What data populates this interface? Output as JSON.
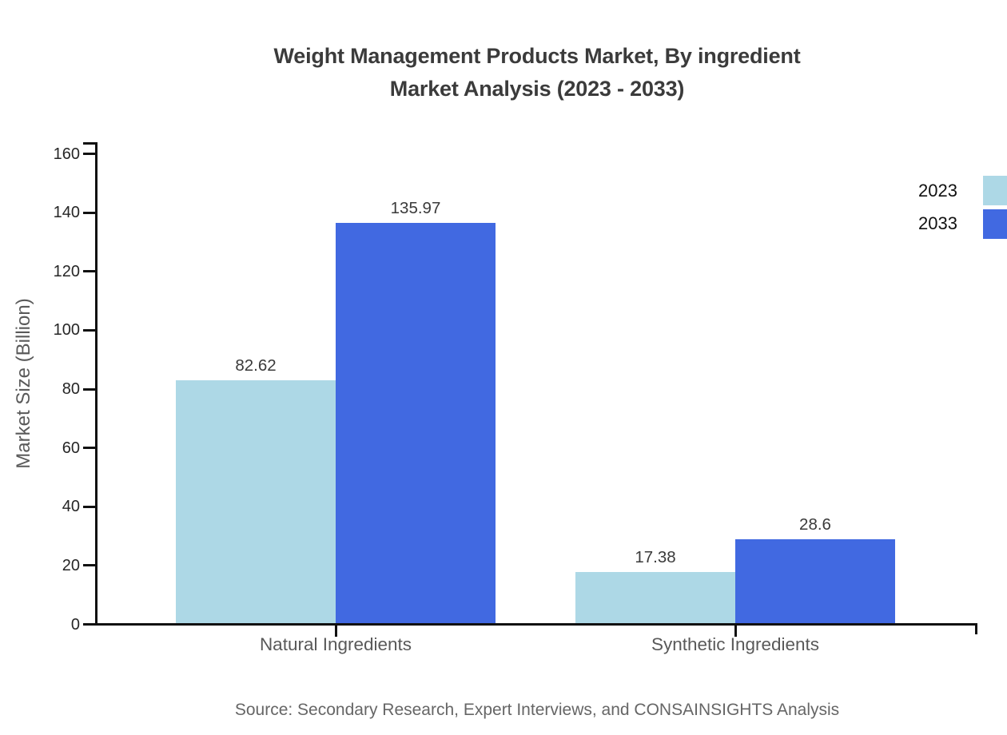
{
  "chart_data": {
    "type": "bar",
    "title_line1": "Weight Management Products Market, By ingredient",
    "title_line2": "Market Analysis (2023 - 2033)",
    "title": "Weight Management Products Market, By ingredient Market Analysis (2023 - 2033)",
    "ylabel": "Market Size (Billion)",
    "xlabel": "",
    "categories": [
      "Natural Ingredients",
      "Synthetic Ingredients"
    ],
    "series": [
      {
        "name": "2023",
        "color": "#ADD8E6",
        "values": [
          82.62,
          17.38
        ],
        "labels": [
          "82.62",
          "17.38"
        ]
      },
      {
        "name": "2033",
        "color": "#4169E1",
        "values": [
          135.97,
          28.6
        ],
        "labels": [
          "135.97",
          "28.6"
        ]
      }
    ],
    "ylim": [
      0,
      160
    ],
    "yticks": [
      0,
      20,
      40,
      60,
      80,
      100,
      120,
      140,
      160
    ],
    "grid": false,
    "legend_position": "top-right",
    "source": "Source: Secondary Research, Expert Interviews, and CONSAINSIGHTS Analysis"
  },
  "colors": {
    "axis": "#111111",
    "title_text": "#3b3b3b",
    "tick_text": "#262626",
    "category_text": "#595959",
    "value_text": "#3a3a3a",
    "source_text": "#666666",
    "series_2023": "#ADD8E6",
    "series_2033": "#4169E1"
  }
}
